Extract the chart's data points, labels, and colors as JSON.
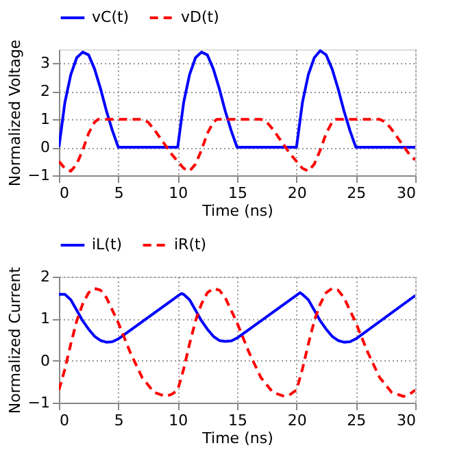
{
  "chart_data": [
    {
      "type": "line",
      "xlabel": "Time (ns)",
      "ylabel": "Normalized Voltage",
      "xlim": [
        0,
        30
      ],
      "xticks": [
        0,
        5,
        10,
        15,
        20,
        25,
        30
      ],
      "ylim": [
        -1,
        3.5
      ],
      "yticks": [
        -1,
        0,
        1,
        2,
        3
      ],
      "grid": true,
      "legend": "top",
      "series": [
        {
          "name": "vC(t)",
          "color": "#0000ff",
          "line_style": "solid",
          "x": [
            0,
            0.5,
            1,
            1.5,
            2,
            2.5,
            3,
            3.5,
            4,
            4.5,
            5,
            10,
            10.5,
            11,
            11.5,
            12,
            12.5,
            13,
            13.5,
            14,
            14.5,
            15,
            20,
            20.5,
            21,
            21.5,
            22,
            22.5,
            23,
            23.5,
            24,
            24.5,
            25,
            30
          ],
          "values": [
            0,
            1.6,
            2.6,
            3.2,
            3.4,
            3.3,
            2.8,
            2.1,
            1.3,
            0.6,
            0,
            0,
            1.6,
            2.6,
            3.2,
            3.4,
            3.3,
            2.8,
            2.1,
            1.3,
            0.6,
            0,
            0,
            1.6,
            2.6,
            3.2,
            3.45,
            3.3,
            2.8,
            2.1,
            1.3,
            0.6,
            0,
            0
          ]
        },
        {
          "name": "vD(t)",
          "color": "#ff0000",
          "line_style": "dashed",
          "x": [
            0,
            0.5,
            1,
            1.5,
            2,
            2.5,
            3,
            3.3,
            7,
            7.5,
            8,
            8.5,
            9,
            9.5,
            10,
            10.5,
            11,
            11.5,
            12,
            12.5,
            13,
            13.3,
            17,
            17.5,
            18,
            18.5,
            19,
            19.5,
            20,
            20.5,
            21,
            21.5,
            22,
            22.5,
            23,
            23.3,
            27,
            27.5,
            28,
            28.5,
            29,
            29.5,
            30
          ],
          "values": [
            -0.5,
            -0.75,
            -0.85,
            -0.6,
            -0.1,
            0.5,
            0.9,
            1,
            1,
            0.9,
            0.65,
            0.35,
            0.05,
            -0.25,
            -0.5,
            -0.75,
            -0.85,
            -0.6,
            -0.1,
            0.5,
            0.9,
            1,
            1,
            0.9,
            0.65,
            0.35,
            0.05,
            -0.25,
            -0.5,
            -0.75,
            -0.85,
            -0.6,
            -0.1,
            0.5,
            0.9,
            1,
            1,
            0.9,
            0.65,
            0.35,
            0.05,
            -0.25,
            -0.45
          ]
        }
      ]
    },
    {
      "type": "line",
      "xlabel": "Time (ns)",
      "ylabel": "Normalized Current",
      "xlim": [
        0,
        30
      ],
      "xticks": [
        0,
        5,
        10,
        15,
        20,
        25,
        30
      ],
      "ylim": [
        -1,
        2
      ],
      "yticks": [
        -1,
        0,
        1,
        2
      ],
      "grid": true,
      "legend": "top",
      "series": [
        {
          "name": "iL(t)",
          "color": "#0000ff",
          "line_style": "solid",
          "x": [
            0,
            0.5,
            1,
            1.5,
            2,
            2.5,
            3,
            3.5,
            4,
            4.5,
            5,
            10.3,
            10.5,
            11,
            11.5,
            12,
            12.5,
            13,
            13.5,
            14,
            14.5,
            15,
            20.3,
            20.5,
            21,
            21.5,
            22,
            22.5,
            23,
            23.5,
            24,
            24.5,
            25,
            30
          ],
          "values": [
            1.58,
            1.58,
            1.45,
            1.2,
            0.95,
            0.75,
            0.58,
            0.48,
            0.44,
            0.45,
            0.52,
            1.6,
            1.58,
            1.45,
            1.2,
            0.95,
            0.75,
            0.58,
            0.48,
            0.46,
            0.47,
            0.54,
            1.62,
            1.58,
            1.45,
            1.2,
            0.95,
            0.75,
            0.58,
            0.48,
            0.44,
            0.45,
            0.52,
            1.55
          ]
        },
        {
          "name": "iR(t)",
          "color": "#ff0000",
          "line_style": "dashed",
          "x": [
            0,
            0.5,
            1,
            1.5,
            2,
            2.5,
            3,
            3.5,
            4,
            5,
            6,
            7,
            8,
            9,
            9.5,
            10,
            10.5,
            11,
            11.5,
            12,
            12.5,
            13,
            13.5,
            14,
            15,
            16,
            17,
            18,
            19,
            19.5,
            20,
            20.5,
            21,
            21.5,
            22,
            22.5,
            23,
            23.5,
            24,
            25,
            26,
            27,
            28,
            29,
            29.5,
            30
          ],
          "values": [
            -0.7,
            -0.2,
            0.4,
            0.95,
            1.35,
            1.62,
            1.72,
            1.68,
            1.5,
            0.9,
            0.2,
            -0.4,
            -0.75,
            -0.85,
            -0.8,
            -0.7,
            -0.2,
            0.4,
            0.95,
            1.35,
            1.62,
            1.72,
            1.68,
            1.5,
            0.9,
            0.2,
            -0.4,
            -0.75,
            -0.85,
            -0.8,
            -0.7,
            -0.2,
            0.4,
            0.95,
            1.35,
            1.62,
            1.72,
            1.68,
            1.5,
            0.9,
            0.2,
            -0.4,
            -0.75,
            -0.85,
            -0.8,
            -0.7
          ]
        }
      ]
    }
  ]
}
